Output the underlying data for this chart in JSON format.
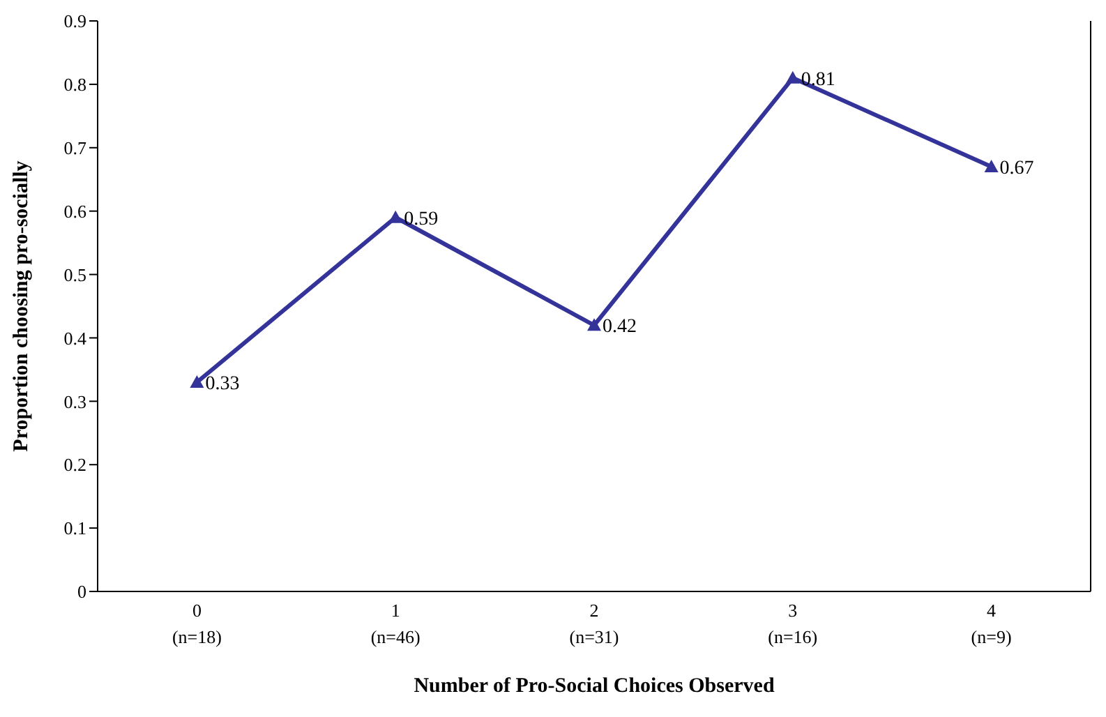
{
  "chart_data": {
    "type": "line",
    "xlabel": "Number of Pro-Social Choices Observed",
    "ylabel": "Proportion choosing pro-socially",
    "categories": [
      "0\n(n=18)",
      "1\n(n=46)",
      "2\n(n=31)",
      "3\n(n=16)",
      "4\n(n=9)"
    ],
    "series": [
      {
        "color": "#333399",
        "values": [
          0.33,
          0.59,
          0.42,
          0.81,
          0.67
        ]
      }
    ],
    "ylim": [
      0,
      0.9
    ],
    "yticks": [
      0,
      0.1,
      0.2,
      0.3,
      0.4,
      0.5,
      0.6,
      0.7,
      0.8,
      0.9
    ],
    "marker": "triangle",
    "line_style": "solid",
    "data_labels": true,
    "grid": false,
    "legend": false
  }
}
